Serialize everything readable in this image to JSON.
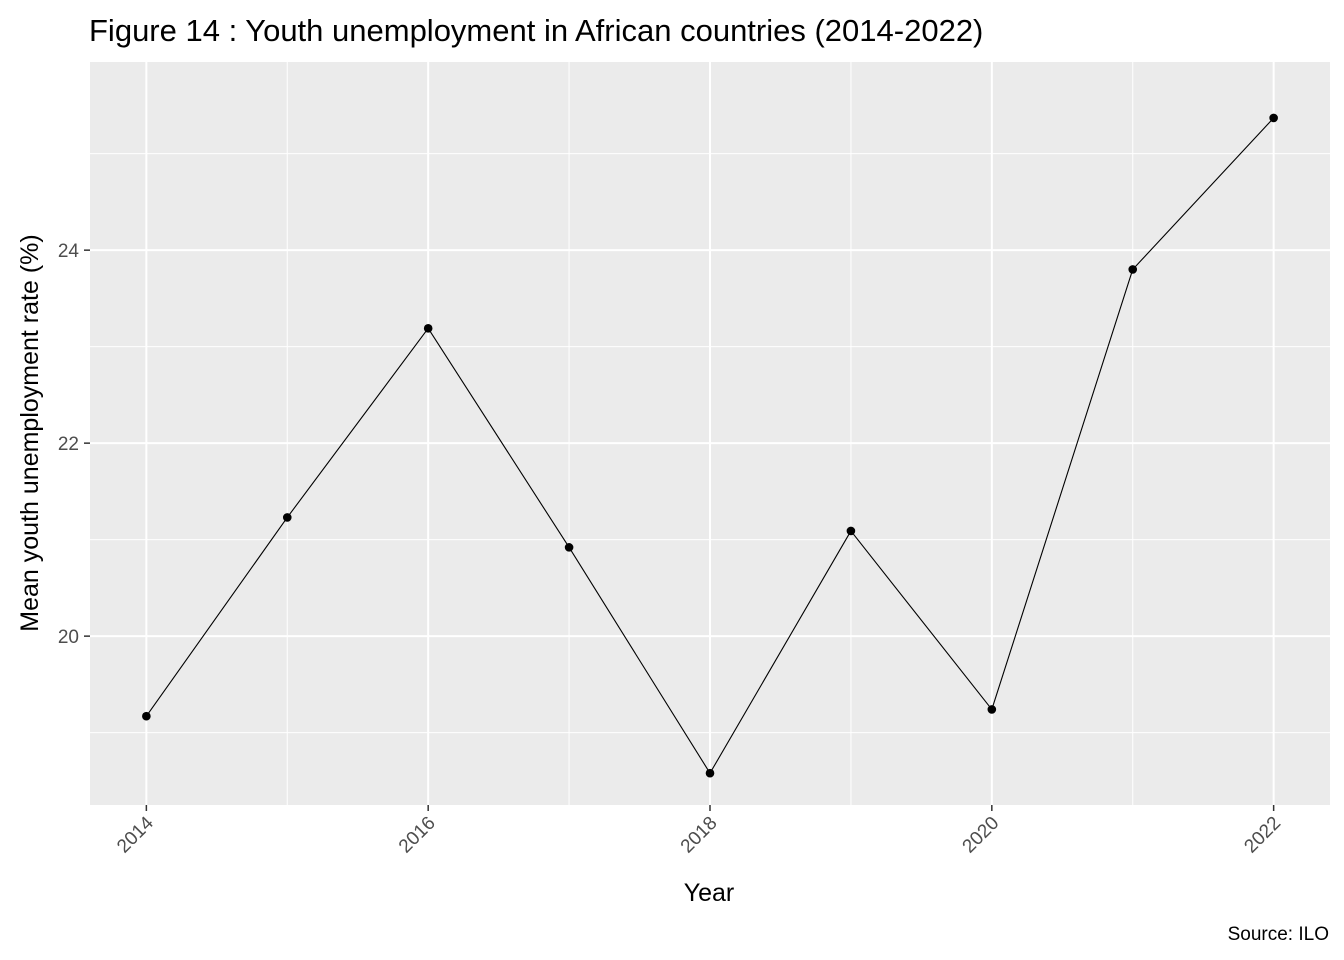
{
  "chart_data": {
    "type": "line",
    "title": "Figure 14 : Youth unemployment in African countries (2014-2022)",
    "xlabel": "Year",
    "ylabel": "Mean youth unemployment rate (%)",
    "caption": "Source: ILO",
    "x": [
      2014,
      2015,
      2016,
      2017,
      2018,
      2019,
      2020,
      2021,
      2022
    ],
    "series": [
      {
        "values": [
          19.17,
          21.23,
          23.19,
          20.92,
          18.58,
          21.09,
          19.24,
          23.8,
          25.37
        ]
      }
    ],
    "xlim": [
      2013.6,
      2022.4
    ],
    "ylim": [
      18.25,
      25.95
    ],
    "xticks": [
      2014,
      2016,
      2018,
      2020,
      2022
    ],
    "xtick_labels": [
      "2014",
      "2016",
      "2018",
      "2020",
      "2022"
    ],
    "xminor": [
      2015,
      2017,
      2019,
      2021
    ],
    "yticks": [
      20,
      22,
      24
    ],
    "ytick_labels": [
      "20",
      "22",
      "24"
    ],
    "yminor": [
      19,
      21,
      23,
      25
    ],
    "grid": true,
    "legend": "none",
    "colors": {
      "panel_background": "#ebebeb",
      "grid": "#ffffff",
      "line": "#000000",
      "point": "#000000",
      "tick_label": "#4d4d4d",
      "tick_mark": "#333333"
    }
  }
}
